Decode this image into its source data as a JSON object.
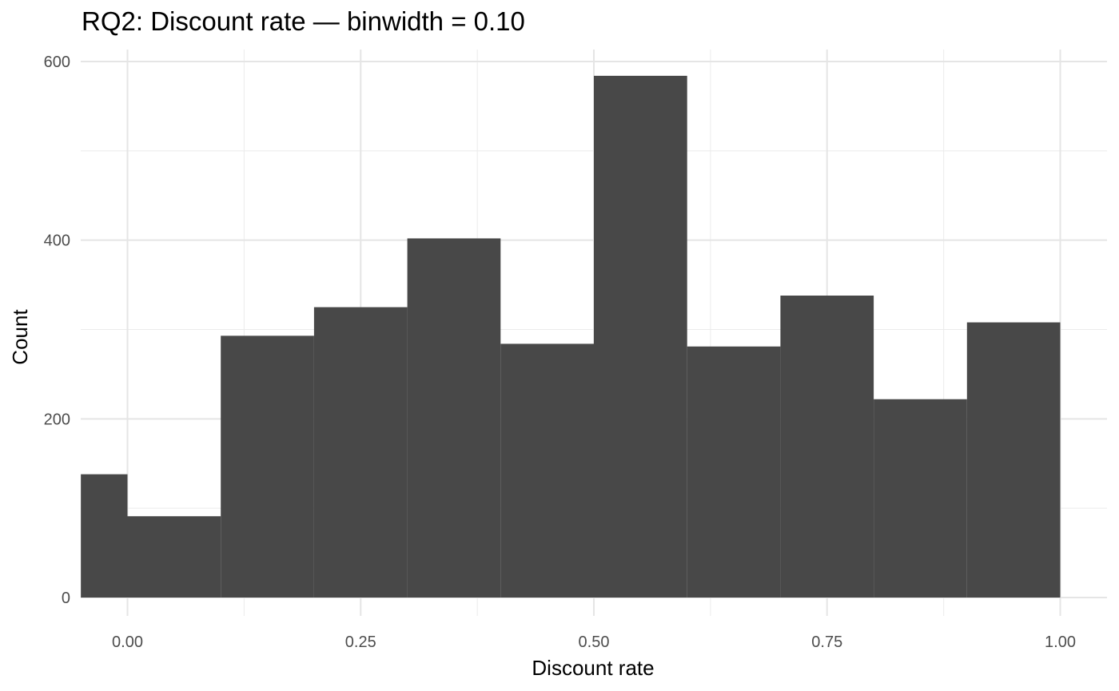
{
  "chart_data": {
    "type": "bar",
    "title": "RQ2: Discount rate — binwidth = 0.10",
    "xlabel": "Discount rate",
    "ylabel": "Count",
    "xlim": [
      -0.05,
      1.05
    ],
    "ylim": [
      0,
      600
    ],
    "x_ticks": [
      0.0,
      0.25,
      0.5,
      0.75,
      1.0
    ],
    "x_tick_labels": [
      "0.00",
      "0.25",
      "0.50",
      "0.75",
      "1.00"
    ],
    "y_ticks": [
      0,
      200,
      400,
      600
    ],
    "y_tick_labels": [
      "0",
      "200",
      "400",
      "600"
    ],
    "bins": [
      {
        "x0": -0.05,
        "x1": 0.0,
        "count": 138
      },
      {
        "x0": 0.0,
        "x1": 0.1,
        "count": 91
      },
      {
        "x0": 0.1,
        "x1": 0.2,
        "count": 293
      },
      {
        "x0": 0.2,
        "x1": 0.3,
        "count": 325
      },
      {
        "x0": 0.3,
        "x1": 0.4,
        "count": 402
      },
      {
        "x0": 0.4,
        "x1": 0.5,
        "count": 284
      },
      {
        "x0": 0.5,
        "x1": 0.6,
        "count": 584
      },
      {
        "x0": 0.6,
        "x1": 0.7,
        "count": 281
      },
      {
        "x0": 0.7,
        "x1": 0.8,
        "count": 338
      },
      {
        "x0": 0.8,
        "x1": 0.9,
        "count": 222
      },
      {
        "x0": 0.9,
        "x1": 1.0,
        "count": 308
      }
    ],
    "bar_color": "#484848",
    "grid": true,
    "legend": "none"
  }
}
